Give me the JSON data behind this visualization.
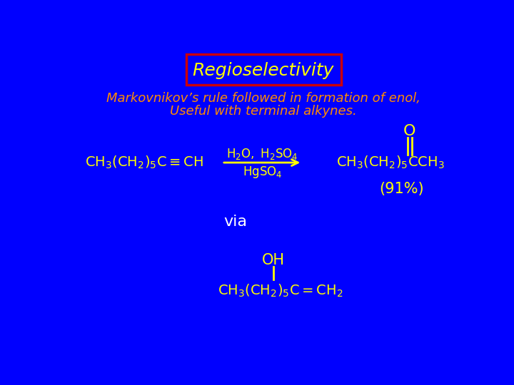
{
  "background_color": "#0000FF",
  "title_text": "Regioselectivity",
  "title_box_color": "#CC0000",
  "title_text_color": "#FFFF00",
  "subtitle_line1": "Markovnikov’s rule followed in formation of enol,",
  "subtitle_line2": "Useful with terminal alkynes.",
  "subtitle_color": "#FF8C00",
  "chem_color": "#FFFF00",
  "via_color": "#FFFFFF",
  "percent_color": "#FFFF00",
  "arrow_color": "#FFFF00",
  "reagent_color": "#FFFF00"
}
